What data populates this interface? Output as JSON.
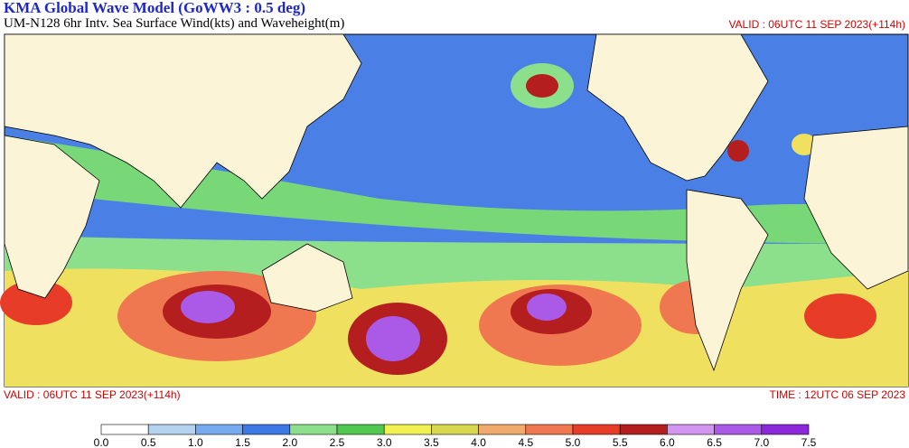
{
  "header": {
    "title": "KMA  Global Wave Model (GoWW3 : 0.5 deg)",
    "subtitle": "UM-N128  6hr Intv. Sea Surface Wind(kts) and Waveheight(m)",
    "valid_top": "VALID : 06UTC 11 SEP 2023(+114h)"
  },
  "footer": {
    "valid": "VALID : 06UTC 11 SEP 2023(+114h)",
    "time": "TIME : 12UTC 06 SEP 2023"
  },
  "colorbar": {
    "labels": [
      "0.0",
      "0.5",
      "1.0",
      "1.5",
      "2.0",
      "2.5",
      "3.0",
      "3.5",
      "4.0",
      "4.5",
      "5.0",
      "5.5",
      "6.0",
      "6.5",
      "7.0",
      "7.5"
    ],
    "colors": [
      "#ffffff",
      "#b4d2f0",
      "#78aaf0",
      "#3c78e6",
      "#8ce08c",
      "#50c850",
      "#f0f050",
      "#d8d850",
      "#f0aa6e",
      "#f07850",
      "#e63c28",
      "#b41e1e",
      "#d296f0",
      "#aa5ae6",
      "#8c28dc"
    ]
  }
}
